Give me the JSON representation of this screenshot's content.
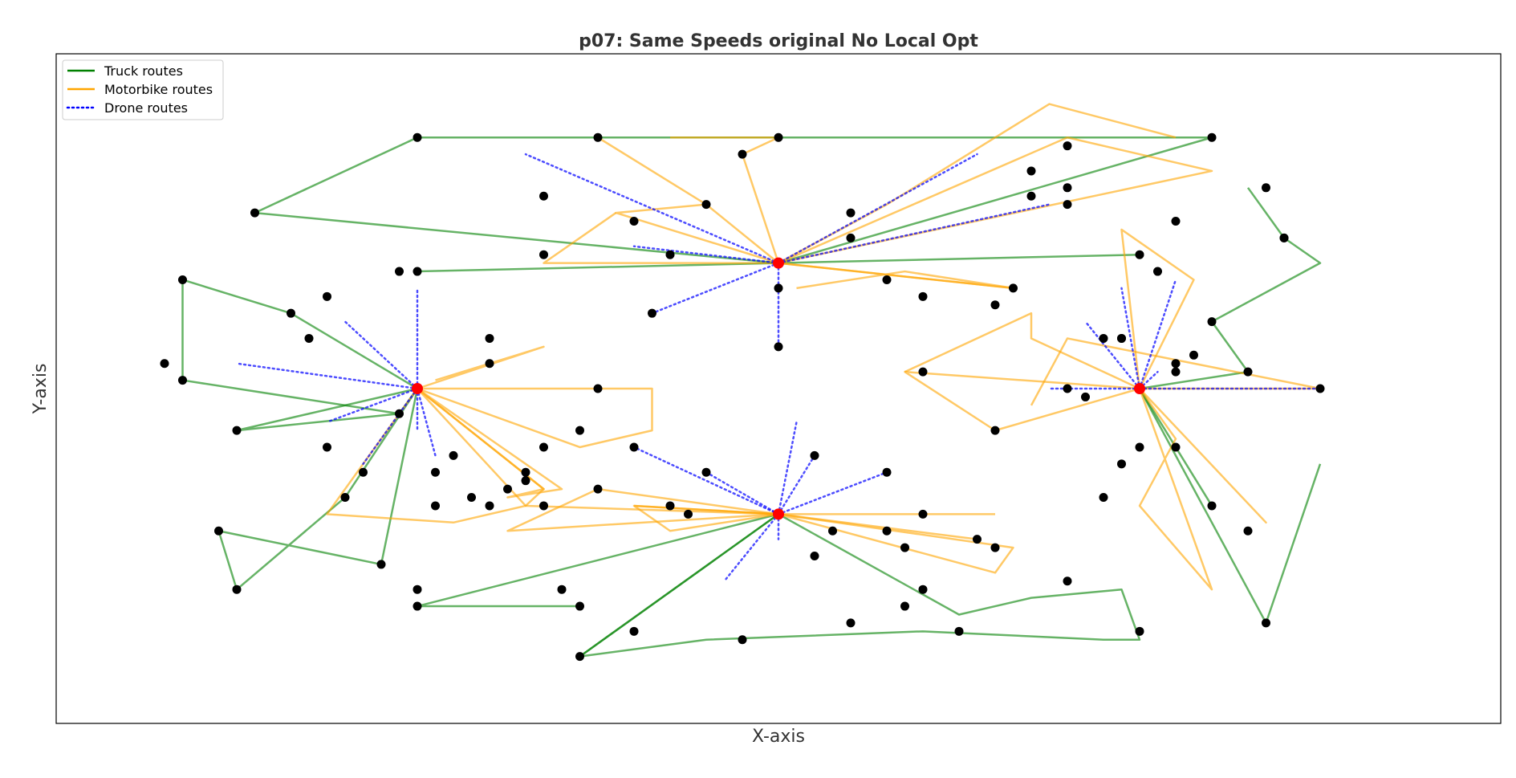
{
  "chart_data": {
    "type": "scatter",
    "title": "p07: Same Speeds original No Local Opt",
    "xlabel": "X-axis",
    "ylabel": "Y-axis",
    "grid": false,
    "xlim": [
      0,
      80
    ],
    "ylim": [
      0,
      80
    ],
    "ticks_shown": false,
    "legend": {
      "placement": "top-left",
      "entries": [
        {
          "label": "Truck routes",
          "color": "#008000",
          "style": "solid"
        },
        {
          "label": "Motorbike routes",
          "color": "#FFA500",
          "style": "solid"
        },
        {
          "label": "Drone routes",
          "color": "#0000FF",
          "style": "dotted"
        }
      ]
    },
    "depots": [
      [
        20,
        40
      ],
      [
        40,
        55
      ],
      [
        60,
        40
      ],
      [
        40,
        25
      ]
    ],
    "customers": [
      [
        20,
        70
      ],
      [
        11,
        61
      ],
      [
        7,
        53
      ],
      [
        7,
        41
      ],
      [
        13,
        49
      ],
      [
        19,
        37
      ],
      [
        64,
        70
      ],
      [
        61,
        54
      ],
      [
        56,
        62
      ],
      [
        52,
        50
      ],
      [
        59,
        31
      ],
      [
        10,
        35
      ],
      [
        18,
        19
      ],
      [
        9,
        23
      ],
      [
        10,
        16
      ],
      [
        16,
        27
      ],
      [
        20,
        14
      ],
      [
        28,
        16
      ],
      [
        32,
        11
      ],
      [
        48,
        16
      ],
      [
        47,
        14
      ],
      [
        56,
        17
      ],
      [
        60,
        11
      ],
      [
        20,
        16
      ],
      [
        29,
        14
      ],
      [
        44,
        12
      ],
      [
        29,
        8
      ],
      [
        38,
        10
      ],
      [
        50,
        11
      ],
      [
        66,
        23
      ],
      [
        64,
        26
      ],
      [
        67,
        12
      ],
      [
        67,
        64
      ],
      [
        68,
        58
      ],
      [
        19,
        54
      ],
      [
        15,
        51
      ],
      [
        64,
        48
      ],
      [
        57,
        39
      ],
      [
        54,
        66
      ],
      [
        56,
        69
      ],
      [
        40,
        70
      ],
      [
        30,
        70
      ],
      [
        38,
        68
      ],
      [
        36,
        62
      ],
      [
        32,
        60
      ],
      [
        27,
        56
      ],
      [
        40,
        52
      ],
      [
        46,
        53
      ],
      [
        48,
        51
      ],
      [
        44,
        58
      ],
      [
        24,
        43
      ],
      [
        30,
        40
      ],
      [
        29,
        35
      ],
      [
        27,
        33
      ],
      [
        25,
        28
      ],
      [
        23,
        27
      ],
      [
        21,
        26
      ],
      [
        26,
        29
      ],
      [
        24,
        26
      ],
      [
        22,
        32
      ],
      [
        27,
        26
      ],
      [
        26,
        30
      ],
      [
        48,
        42
      ],
      [
        59,
        46
      ],
      [
        52,
        35
      ],
      [
        58,
        27
      ],
      [
        48,
        25
      ],
      [
        46,
        23
      ],
      [
        47,
        21
      ],
      [
        52,
        21
      ],
      [
        51,
        22
      ],
      [
        34,
        26
      ],
      [
        30,
        28
      ],
      [
        35,
        25
      ],
      [
        24,
        46
      ],
      [
        20,
        54
      ],
      [
        14,
        46
      ],
      [
        6,
        43
      ],
      [
        15,
        33
      ],
      [
        17,
        30
      ],
      [
        21,
        30
      ],
      [
        44,
        61
      ],
      [
        54,
        63
      ],
      [
        56,
        64
      ],
      [
        53,
        52
      ],
      [
        34,
        56
      ],
      [
        27,
        63
      ],
      [
        33,
        49
      ],
      [
        40,
        45
      ],
      [
        60,
        56
      ],
      [
        62,
        60
      ],
      [
        62,
        43
      ],
      [
        62,
        42
      ],
      [
        63,
        44
      ],
      [
        58,
        46
      ],
      [
        56,
        40
      ],
      [
        70,
        40
      ],
      [
        59,
        46
      ],
      [
        32,
        33
      ],
      [
        36,
        30
      ],
      [
        42,
        32
      ],
      [
        46,
        30
      ],
      [
        43,
        23
      ],
      [
        42,
        20
      ],
      [
        62,
        33
      ],
      [
        60,
        33
      ],
      [
        66,
        42
      ],
      [
        68,
        58
      ]
    ],
    "truck_routes": [
      [
        [
          20,
          40
        ],
        [
          10,
          35
        ],
        [
          19,
          37
        ],
        [
          20,
          40
        ],
        [
          18,
          19
        ],
        [
          9,
          23
        ],
        [
          10,
          16
        ],
        [
          16,
          27
        ],
        [
          20,
          40
        ]
      ],
      [
        [
          40,
          55
        ],
        [
          11,
          61
        ],
        [
          20,
          70
        ],
        [
          64,
          70
        ],
        [
          40,
          55
        ]
      ],
      [
        [
          40,
          55
        ],
        [
          20,
          54
        ]
      ],
      [
        [
          40,
          55
        ],
        [
          60,
          56
        ]
      ],
      [
        [
          20,
          40
        ],
        [
          13,
          49
        ],
        [
          7,
          53
        ],
        [
          7,
          41
        ],
        [
          19,
          37
        ]
      ],
      [
        [
          60,
          40
        ],
        [
          67,
          12
        ],
        [
          70,
          31
        ]
      ],
      [
        [
          60,
          40
        ],
        [
          64,
          26
        ],
        [
          62,
          33
        ]
      ],
      [
        [
          60,
          40
        ],
        [
          66,
          42
        ],
        [
          64,
          48
        ],
        [
          70,
          55
        ],
        [
          68,
          58
        ],
        [
          66,
          64
        ]
      ],
      [
        [
          40,
          25
        ],
        [
          20,
          14
        ],
        [
          29,
          14
        ]
      ],
      [
        [
          40,
          25
        ],
        [
          29,
          8
        ],
        [
          36,
          10
        ],
        [
          48,
          11
        ],
        [
          58,
          10
        ],
        [
          60,
          10
        ],
        [
          59,
          16
        ],
        [
          54,
          15
        ],
        [
          50,
          13
        ],
        [
          40,
          25
        ]
      ],
      [
        [
          40,
          25
        ],
        [
          29,
          8
        ]
      ]
    ],
    "motorbike_routes": [
      [
        [
          40,
          55
        ],
        [
          36,
          62
        ],
        [
          30,
          70
        ]
      ],
      [
        [
          40,
          55
        ],
        [
          38,
          68
        ],
        [
          40,
          70
        ],
        [
          34,
          70
        ]
      ],
      [
        [
          40,
          55
        ],
        [
          31,
          61
        ],
        [
          36,
          62
        ]
      ],
      [
        [
          40,
          55
        ],
        [
          27,
          55
        ],
        [
          31,
          61
        ]
      ],
      [
        [
          40,
          55
        ],
        [
          56,
          70
        ],
        [
          64,
          66
        ],
        [
          40,
          55
        ]
      ],
      [
        [
          40,
          55
        ],
        [
          46,
          62
        ],
        [
          55,
          74
        ],
        [
          62,
          70
        ]
      ],
      [
        [
          40,
          55
        ],
        [
          53,
          52
        ],
        [
          47,
          54
        ],
        [
          41,
          52
        ]
      ],
      [
        [
          40,
          55
        ],
        [
          53,
          52
        ]
      ],
      [
        [
          20,
          40
        ],
        [
          27,
          45
        ],
        [
          21,
          41
        ]
      ],
      [
        [
          20,
          40
        ],
        [
          33,
          40
        ],
        [
          33,
          35
        ],
        [
          29,
          33
        ],
        [
          20,
          40
        ]
      ],
      [
        [
          20,
          40
        ],
        [
          28,
          28
        ],
        [
          25,
          27
        ],
        [
          27,
          28
        ],
        [
          20,
          40
        ]
      ],
      [
        [
          20,
          40
        ],
        [
          26,
          26
        ],
        [
          27,
          28
        ],
        [
          20,
          40
        ]
      ],
      [
        [
          20,
          40
        ],
        [
          15,
          25
        ],
        [
          22,
          24
        ],
        [
          26,
          26
        ],
        [
          40,
          25
        ]
      ],
      [
        [
          40,
          25
        ],
        [
          25,
          23
        ],
        [
          28,
          26
        ],
        [
          30,
          28
        ],
        [
          40,
          25
        ]
      ],
      [
        [
          40,
          25
        ],
        [
          34,
          23
        ],
        [
          32,
          26
        ],
        [
          40,
          25
        ]
      ],
      [
        [
          40,
          25
        ],
        [
          32,
          26
        ]
      ],
      [
        [
          40,
          25
        ],
        [
          52,
          25
        ]
      ],
      [
        [
          40,
          25
        ],
        [
          53,
          21
        ],
        [
          52,
          18
        ],
        [
          40,
          25
        ]
      ],
      [
        [
          40,
          25
        ],
        [
          51,
          22
        ]
      ],
      [
        [
          60,
          40
        ],
        [
          47,
          42
        ],
        [
          52,
          35
        ],
        [
          60,
          40
        ]
      ],
      [
        [
          60,
          40
        ],
        [
          67,
          24
        ],
        [
          60,
          40
        ]
      ],
      [
        [
          60,
          40
        ],
        [
          62,
          34
        ],
        [
          60,
          26
        ],
        [
          64,
          16
        ],
        [
          60,
          40
        ]
      ],
      [
        [
          60,
          40
        ],
        [
          63,
          53
        ],
        [
          59,
          59
        ],
        [
          60,
          40
        ]
      ],
      [
        [
          60,
          40
        ],
        [
          70,
          40
        ],
        [
          56,
          46
        ],
        [
          54,
          38
        ]
      ],
      [
        [
          60,
          40
        ],
        [
          54,
          46
        ],
        [
          54,
          49
        ],
        [
          47,
          42
        ]
      ]
    ],
    "drone_routes": [
      [
        [
          40,
          55
        ],
        [
          26,
          68
        ]
      ],
      [
        [
          40,
          55
        ],
        [
          32,
          57
        ]
      ],
      [
        [
          40,
          55
        ],
        [
          33,
          49
        ]
      ],
      [
        [
          40,
          55
        ],
        [
          40,
          45
        ]
      ],
      [
        [
          40,
          55
        ],
        [
          51,
          68
        ]
      ],
      [
        [
          40,
          55
        ],
        [
          55,
          62
        ]
      ],
      [
        [
          20,
          40
        ],
        [
          20,
          52
        ]
      ],
      [
        [
          20,
          40
        ],
        [
          16,
          48
        ]
      ],
      [
        [
          20,
          40
        ],
        [
          10,
          43
        ]
      ],
      [
        [
          20,
          40
        ],
        [
          15,
          36
        ]
      ],
      [
        [
          20,
          40
        ],
        [
          17,
          31
        ]
      ],
      [
        [
          20,
          40
        ],
        [
          21,
          32
        ]
      ],
      [
        [
          20,
          40
        ],
        [
          20,
          35
        ]
      ],
      [
        [
          60,
          40
        ],
        [
          59,
          52
        ]
      ],
      [
        [
          60,
          40
        ],
        [
          57,
          48
        ]
      ],
      [
        [
          60,
          40
        ],
        [
          62,
          53
        ]
      ],
      [
        [
          60,
          40
        ],
        [
          55,
          40
        ]
      ],
      [
        [
          60,
          40
        ],
        [
          70,
          40
        ]
      ],
      [
        [
          60,
          40
        ],
        [
          61,
          42
        ]
      ],
      [
        [
          40,
          25
        ],
        [
          32,
          33
        ]
      ],
      [
        [
          40,
          25
        ],
        [
          36,
          30
        ]
      ],
      [
        [
          40,
          25
        ],
        [
          42,
          32
        ]
      ],
      [
        [
          40,
          25
        ],
        [
          46,
          30
        ]
      ],
      [
        [
          40,
          25
        ],
        [
          37,
          17
        ]
      ],
      [
        [
          40,
          25
        ],
        [
          40,
          22
        ]
      ],
      [
        [
          40,
          25
        ],
        [
          41,
          36
        ]
      ]
    ]
  }
}
